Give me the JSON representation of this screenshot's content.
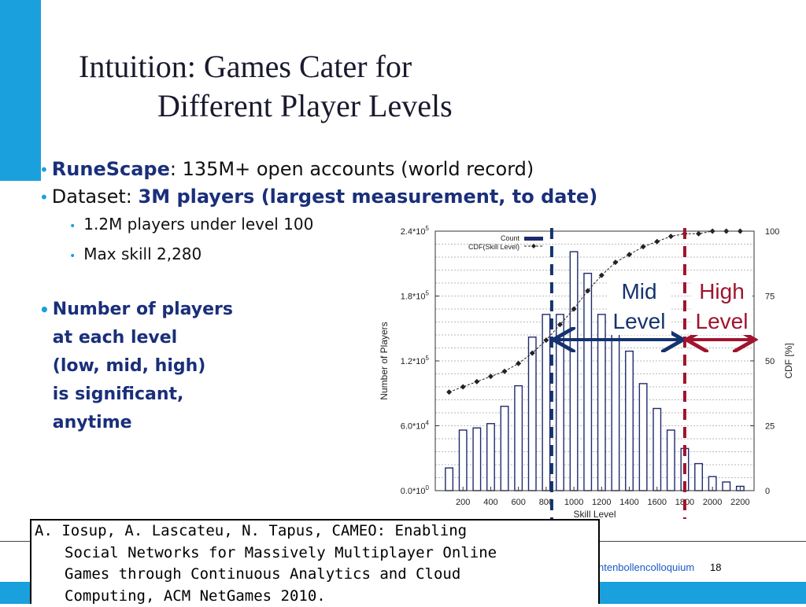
{
  "slide": {
    "title_line1": "Intuition: Games Cater for",
    "title_line2": "Different Player Levels",
    "bullet1_bold": "RuneScape",
    "bullet1_rest": ": 135M+ open accounts (world record)",
    "bullet2_prefix": "Dataset: ",
    "bullet2_bold": "3M players (largest measurement, to date)",
    "sub_bullets": [
      "1.2M players under level 100",
      "Max skill 2,280"
    ],
    "bullet3_lines": [
      "Number of players",
      "at each level",
      "(low, mid, high)",
      "is significant,",
      "anytime"
    ],
    "citation_lines": [
      "A. Iosup, A. Lascateu, N. Tapus, CAMEO: Enabling",
      "Social Networks for Massively Multiplayer Online",
      "Games through Continuous Analytics and Cloud",
      "Computing, ACM NetGames 2010."
    ],
    "footer_text": "ntenbollencolloquium",
    "page_number": "18",
    "colors": {
      "accent": "#1aa0dc",
      "title": "#1a1a2e",
      "emphasis": "#1a2f7a",
      "mid_marker": "#14336e",
      "high_marker": "#a0142e"
    }
  },
  "chart_data": {
    "type": "bar",
    "xlabel": "Skill Level",
    "ylabel": "Number of Players",
    "y2label": "CDF [%]",
    "xticks": [
      "200",
      "400",
      "600",
      "800",
      "1000",
      "1200",
      "1400",
      "1600",
      "1800",
      "2000",
      "2200"
    ],
    "yticks_left": [
      "0.0*10^0",
      "6.0*10^4",
      "1.2*10^5",
      "1.8*10^5",
      "2.4*10^5"
    ],
    "yticks_right": [
      "0",
      "25",
      "50",
      "75",
      "100"
    ],
    "xlim": [
      0,
      2300
    ],
    "ylim": [
      0,
      240000
    ],
    "y2lim": [
      0,
      100
    ],
    "legend": [
      "Count",
      "CDF(Skill Level)"
    ],
    "legend_position": "top-left",
    "grid": "horizontal dashed",
    "series": [
      {
        "name": "Count",
        "type": "bar",
        "x": [
          100,
          200,
          300,
          400,
          500,
          600,
          700,
          800,
          900,
          1000,
          1100,
          1200,
          1300,
          1400,
          1500,
          1600,
          1700,
          1800,
          1900,
          2000,
          2100,
          2200
        ],
        "values": [
          21000,
          56000,
          58000,
          62000,
          78000,
          97000,
          142000,
          163000,
          163000,
          221000,
          201000,
          163000,
          146000,
          129000,
          99000,
          76000,
          56000,
          39000,
          25000,
          13000,
          8000,
          4000
        ]
      },
      {
        "name": "CDF(Skill Level)",
        "type": "line",
        "x": [
          100,
          200,
          300,
          400,
          500,
          600,
          700,
          800,
          900,
          1000,
          1100,
          1200,
          1300,
          1400,
          1500,
          1600,
          1700,
          1800,
          1900,
          2000,
          2100,
          2200
        ],
        "values": [
          38,
          40,
          42,
          44,
          46,
          49,
          53,
          58,
          64,
          70,
          77,
          83,
          88,
          91,
          94,
          96,
          98,
          99,
          99,
          100,
          100,
          100
        ]
      }
    ],
    "annotations": [
      {
        "label_lines": [
          "Mid",
          "Level"
        ],
        "range": [
          840,
          1800
        ]
      },
      {
        "label_lines": [
          "High",
          "Level"
        ],
        "range": [
          1800,
          2300
        ]
      }
    ],
    "vlines": [
      840,
      1800
    ]
  }
}
